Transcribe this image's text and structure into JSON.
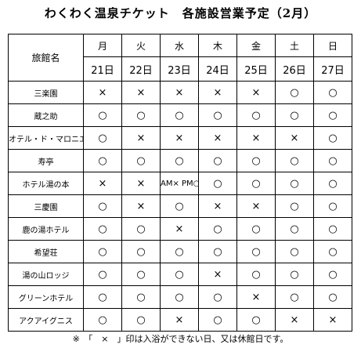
{
  "header": {
    "title": "わくわく温泉チケット　各施設営業予定（2月）"
  },
  "table": {
    "name_header": "旅館名",
    "weekdays": [
      "月",
      "火",
      "水",
      "木",
      "金",
      "土",
      "日"
    ],
    "dates": [
      "21日",
      "22日",
      "23日",
      "24日",
      "25日",
      "26日",
      "27日"
    ],
    "rows": [
      [
        "三楽園",
        "×",
        "×",
        "×",
        "×",
        "×",
        "○",
        "○"
      ],
      [
        "蔵之助",
        "○",
        "○",
        "○",
        "○",
        "○",
        "○",
        "○"
      ],
      [
        "オテル・ド・マロニエ",
        "○",
        "×",
        "×",
        "×",
        "×",
        "×",
        "○"
      ],
      [
        "寿亭",
        "○",
        "○",
        "○",
        "○",
        "○",
        "○",
        "○"
      ],
      [
        "ホテル湯の本",
        "×",
        "×",
        "AM× PM○",
        "○",
        "○",
        "○",
        "○"
      ],
      [
        "三慶園",
        "○",
        "×",
        "○",
        "×",
        "×",
        "○",
        "○"
      ],
      [
        "鹿の湯ホテル",
        "○",
        "○",
        "×",
        "○",
        "○",
        "○",
        "○"
      ],
      [
        "希望荘",
        "○",
        "○",
        "○",
        "○",
        "○",
        "○",
        "○"
      ],
      [
        "湯の山ロッジ",
        "○",
        "○",
        "○",
        "×",
        "○",
        "○",
        "○"
      ],
      [
        "グリーンホテル",
        "○",
        "○",
        "○",
        "○",
        "×",
        "○",
        "○"
      ],
      [
        "アクアイグニス",
        "○",
        "○",
        "×",
        "○",
        "○",
        "×",
        "×"
      ]
    ]
  },
  "footer": {
    "note": "※　「　×　」印は入浴ができない日、又は休館日です。"
  }
}
